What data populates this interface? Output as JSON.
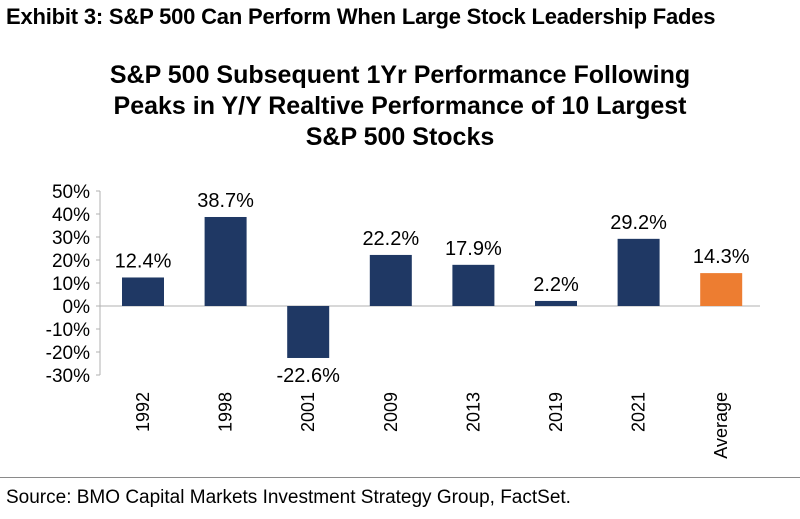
{
  "exhibit_title": "Exhibit 3: S&P 500 Can Perform When Large Stock Leadership Fades",
  "chart_data": {
    "type": "bar",
    "title_lines": [
      "S&P 500 Subsequent 1Yr Performance Following",
      "Peaks in Y/Y Realtive Performance of 10 Largest",
      "S&P 500 Stocks"
    ],
    "categories": [
      "1992",
      "1998",
      "2001",
      "2009",
      "2013",
      "2019",
      "2021",
      "Average"
    ],
    "values": [
      12.4,
      38.7,
      -22.6,
      22.2,
      17.9,
      2.2,
      29.2,
      14.3
    ],
    "data_labels": [
      "12.4%",
      "38.7%",
      "-22.6%",
      "22.2%",
      "17.9%",
      "2.2%",
      "29.2%",
      "14.3%"
    ],
    "y_ticks": [
      50,
      40,
      30,
      20,
      10,
      0,
      -10,
      -20,
      -30
    ],
    "y_tick_labels": [
      "50%",
      "40%",
      "30%",
      "20%",
      "10%",
      "0%",
      "-10%",
      "-20%",
      "-30%"
    ],
    "ylim": [
      -30,
      50
    ],
    "grid": false,
    "colors": {
      "bar": "#1f3864",
      "average": "#ed7d31",
      "axis": "#b0b0b0"
    }
  },
  "source": "Source: BMO Capital Markets Investment Strategy Group, FactSet."
}
